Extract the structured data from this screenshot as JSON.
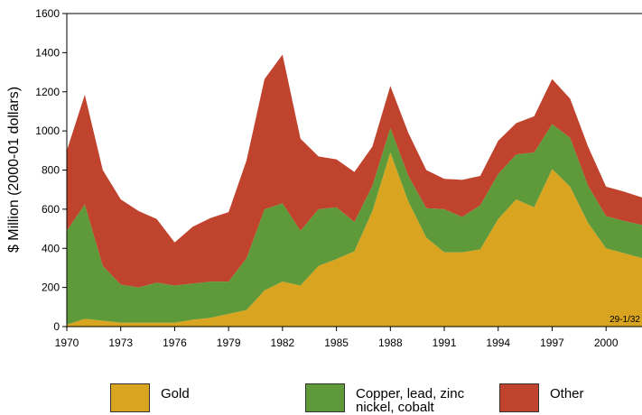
{
  "chart_data": {
    "type": "stacked-area",
    "y_label": "$ Million (2000-01 dollars)",
    "annotation": "29-1/32",
    "x": [
      1970,
      1971,
      1972,
      1973,
      1974,
      1975,
      1976,
      1977,
      1978,
      1979,
      1980,
      1981,
      1982,
      1983,
      1984,
      1985,
      1986,
      1987,
      1988,
      1989,
      1990,
      1991,
      1992,
      1993,
      1994,
      1995,
      1996,
      1997,
      1998,
      1999,
      2000,
      2001,
      2002
    ],
    "xlim": [
      1970,
      2002
    ],
    "xticks": [
      1970,
      1973,
      1976,
      1979,
      1982,
      1985,
      1988,
      1991,
      1994,
      1997,
      2000
    ],
    "ylim": [
      0,
      1600
    ],
    "yticks": [
      0,
      200,
      400,
      600,
      800,
      1000,
      1200,
      1400,
      1600
    ],
    "series": [
      {
        "name": "Gold",
        "color": "#d9a520",
        "values": [
          10,
          40,
          30,
          20,
          20,
          20,
          20,
          35,
          45,
          65,
          85,
          185,
          230,
          210,
          310,
          345,
          385,
          590,
          890,
          640,
          455,
          380,
          380,
          395,
          550,
          650,
          610,
          805,
          715,
          530,
          400,
          375,
          350
        ]
      },
      {
        "name": "Copper, lead, zinc nickel, cobalt",
        "color": "#5e9a3a",
        "values": [
          480,
          585,
          280,
          195,
          180,
          205,
          190,
          185,
          185,
          165,
          265,
          415,
          400,
          280,
          290,
          265,
          150,
          130,
          125,
          130,
          150,
          220,
          180,
          225,
          230,
          230,
          280,
          230,
          250,
          190,
          165,
          165,
          170
        ]
      },
      {
        "name": "Other",
        "color": "#c0432e",
        "values": [
          410,
          560,
          490,
          435,
          390,
          325,
          220,
          290,
          325,
          355,
          500,
          665,
          760,
          470,
          270,
          245,
          255,
          200,
          215,
          220,
          195,
          155,
          190,
          150,
          170,
          160,
          185,
          230,
          200,
          200,
          150,
          150,
          140
        ]
      }
    ]
  }
}
